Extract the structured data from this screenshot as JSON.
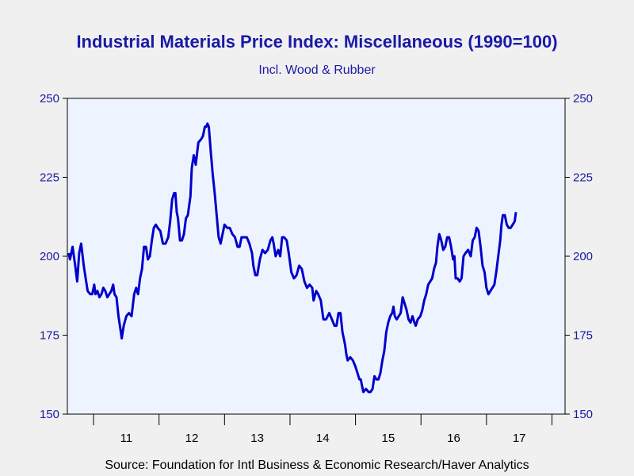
{
  "chart_data": {
    "type": "line",
    "title": "Industrial Materials Price Index: Miscellaneous (1990=100)",
    "subtitle": "Incl. Wood & Rubber",
    "source": "Source:  Foundation for Intl Business & Economic Research/Haver Analytics",
    "ylim": [
      150,
      250
    ],
    "yticks": [
      "250",
      "225",
      "200",
      "175",
      "150"
    ],
    "xlim": [
      2010.6,
      2018.2
    ],
    "xticks": [
      {
        "label": "11",
        "x": 2011.5
      },
      {
        "label": "12",
        "x": 2012.5
      },
      {
        "label": "13",
        "x": 2013.5
      },
      {
        "label": "14",
        "x": 2014.5
      },
      {
        "label": "15",
        "x": 2015.5
      },
      {
        "label": "16",
        "x": 2016.5
      },
      {
        "label": "17",
        "x": 2017.5
      }
    ],
    "grid": false,
    "line_color": "#0000cc",
    "background_color": "#eef4ff",
    "series": [
      {
        "values": [
          [
            2010.62,
            201
          ],
          [
            2010.64,
            199
          ],
          [
            2010.68,
            203
          ],
          [
            2010.72,
            197
          ],
          [
            2010.75,
            192
          ],
          [
            2010.78,
            201
          ],
          [
            2010.81,
            204
          ],
          [
            2010.85,
            197
          ],
          [
            2010.88,
            193
          ],
          [
            2010.91,
            189
          ],
          [
            2010.95,
            188
          ],
          [
            2010.98,
            188
          ],
          [
            2011.01,
            191
          ],
          [
            2011.03,
            188
          ],
          [
            2011.06,
            189
          ],
          [
            2011.09,
            187
          ],
          [
            2011.12,
            188
          ],
          [
            2011.15,
            190
          ],
          [
            2011.18,
            189
          ],
          [
            2011.21,
            187
          ],
          [
            2011.24,
            188
          ],
          [
            2011.27,
            189
          ],
          [
            2011.3,
            191
          ],
          [
            2011.32,
            188
          ],
          [
            2011.35,
            187
          ],
          [
            2011.38,
            181
          ],
          [
            2011.41,
            177
          ],
          [
            2011.43,
            174
          ],
          [
            2011.46,
            178
          ],
          [
            2011.5,
            181
          ],
          [
            2011.54,
            182
          ],
          [
            2011.58,
            181
          ],
          [
            2011.62,
            188
          ],
          [
            2011.65,
            190
          ],
          [
            2011.68,
            188
          ],
          [
            2011.71,
            193
          ],
          [
            2011.74,
            196
          ],
          [
            2011.77,
            203
          ],
          [
            2011.8,
            203
          ],
          [
            2011.83,
            199
          ],
          [
            2011.86,
            200
          ],
          [
            2011.89,
            205
          ],
          [
            2011.92,
            209
          ],
          [
            2011.95,
            210
          ],
          [
            2011.98,
            209
          ],
          [
            2012.02,
            208
          ],
          [
            2012.06,
            204
          ],
          [
            2012.1,
            204
          ],
          [
            2012.14,
            206
          ],
          [
            2012.17,
            211
          ],
          [
            2012.2,
            218
          ],
          [
            2012.23,
            220
          ],
          [
            2012.25,
            220
          ],
          [
            2012.27,
            214
          ],
          [
            2012.29,
            212
          ],
          [
            2012.32,
            205
          ],
          [
            2012.35,
            205
          ],
          [
            2012.38,
            207
          ],
          [
            2012.41,
            212
          ],
          [
            2012.44,
            213
          ],
          [
            2012.48,
            219
          ],
          [
            2012.5,
            228
          ],
          [
            2012.53,
            232
          ],
          [
            2012.56,
            229
          ],
          [
            2012.6,
            236
          ],
          [
            2012.64,
            237
          ],
          [
            2012.67,
            238
          ],
          [
            2012.7,
            241
          ],
          [
            2012.72,
            241
          ],
          [
            2012.74,
            242
          ],
          [
            2012.76,
            241
          ],
          [
            2012.79,
            233
          ],
          [
            2012.82,
            226
          ],
          [
            2012.85,
            220
          ],
          [
            2012.88,
            213
          ],
          [
            2012.91,
            206
          ],
          [
            2012.94,
            204
          ],
          [
            2012.97,
            207
          ],
          [
            2013.0,
            210
          ],
          [
            2013.04,
            209
          ],
          [
            2013.08,
            209
          ],
          [
            2013.12,
            207
          ],
          [
            2013.16,
            206
          ],
          [
            2013.2,
            203
          ],
          [
            2013.23,
            203
          ],
          [
            2013.26,
            206
          ],
          [
            2013.3,
            206
          ],
          [
            2013.34,
            206
          ],
          [
            2013.38,
            204
          ],
          [
            2013.42,
            201
          ],
          [
            2013.44,
            197
          ],
          [
            2013.47,
            194
          ],
          [
            2013.5,
            194
          ],
          [
            2013.54,
            199
          ],
          [
            2013.58,
            202
          ],
          [
            2013.62,
            201
          ],
          [
            2013.66,
            202
          ],
          [
            2013.7,
            205
          ],
          [
            2013.73,
            206
          ],
          [
            2013.75,
            204
          ],
          [
            2013.78,
            200
          ],
          [
            2013.82,
            202
          ],
          [
            2013.85,
            200
          ],
          [
            2013.88,
            206
          ],
          [
            2013.91,
            206
          ],
          [
            2013.95,
            205
          ],
          [
            2013.98,
            201
          ],
          [
            2014.02,
            195
          ],
          [
            2014.06,
            193
          ],
          [
            2014.1,
            194
          ],
          [
            2014.14,
            197
          ],
          [
            2014.18,
            196
          ],
          [
            2014.22,
            192
          ],
          [
            2014.26,
            190
          ],
          [
            2014.3,
            191
          ],
          [
            2014.34,
            190
          ],
          [
            2014.36,
            186
          ],
          [
            2014.4,
            189
          ],
          [
            2014.43,
            188
          ],
          [
            2014.47,
            186
          ],
          [
            2014.51,
            180
          ],
          [
            2014.55,
            180
          ],
          [
            2014.6,
            182
          ],
          [
            2014.64,
            180
          ],
          [
            2014.68,
            178
          ],
          [
            2014.71,
            178
          ],
          [
            2014.74,
            182
          ],
          [
            2014.77,
            182
          ],
          [
            2014.8,
            176
          ],
          [
            2014.84,
            172
          ],
          [
            2014.86,
            169
          ],
          [
            2014.88,
            167
          ],
          [
            2014.92,
            168
          ],
          [
            2014.96,
            167
          ],
          [
            2015.0,
            165
          ],
          [
            2015.03,
            163
          ],
          [
            2015.06,
            161
          ],
          [
            2015.08,
            161
          ],
          [
            2015.1,
            159
          ],
          [
            2015.12,
            157
          ],
          [
            2015.16,
            158
          ],
          [
            2015.2,
            157
          ],
          [
            2015.23,
            157
          ],
          [
            2015.26,
            158
          ],
          [
            2015.29,
            162
          ],
          [
            2015.32,
            161
          ],
          [
            2015.35,
            161
          ],
          [
            2015.38,
            163
          ],
          [
            2015.41,
            167
          ],
          [
            2015.44,
            170
          ],
          [
            2015.47,
            176
          ],
          [
            2015.5,
            179
          ],
          [
            2015.53,
            181
          ],
          [
            2015.56,
            182
          ],
          [
            2015.58,
            184
          ],
          [
            2015.6,
            181
          ],
          [
            2015.63,
            180
          ],
          [
            2015.66,
            181
          ],
          [
            2015.69,
            182
          ],
          [
            2015.72,
            187
          ],
          [
            2015.75,
            185
          ],
          [
            2015.78,
            183
          ],
          [
            2015.81,
            180
          ],
          [
            2015.84,
            179
          ],
          [
            2015.87,
            181
          ],
          [
            2015.9,
            179
          ],
          [
            2015.92,
            178
          ],
          [
            2015.95,
            180
          ],
          [
            2015.99,
            181
          ],
          [
            2016.02,
            183
          ],
          [
            2016.05,
            186
          ],
          [
            2016.08,
            188
          ],
          [
            2016.11,
            191
          ],
          [
            2016.14,
            192
          ],
          [
            2016.17,
            193
          ],
          [
            2016.2,
            196
          ],
          [
            2016.23,
            198
          ],
          [
            2016.25,
            203
          ],
          [
            2016.28,
            207
          ],
          [
            2016.31,
            205
          ],
          [
            2016.34,
            202
          ],
          [
            2016.37,
            203
          ],
          [
            2016.4,
            206
          ],
          [
            2016.43,
            206
          ],
          [
            2016.46,
            203
          ],
          [
            2016.49,
            199
          ],
          [
            2016.51,
            200
          ],
          [
            2016.53,
            193
          ],
          [
            2016.56,
            193
          ],
          [
            2016.59,
            192
          ],
          [
            2016.62,
            193
          ],
          [
            2016.65,
            200
          ],
          [
            2016.68,
            201
          ],
          [
            2016.72,
            202
          ],
          [
            2016.76,
            200
          ],
          [
            2016.79,
            205
          ],
          [
            2016.82,
            206
          ],
          [
            2016.85,
            209
          ],
          [
            2016.88,
            208
          ],
          [
            2016.91,
            203
          ],
          [
            2016.94,
            197
          ],
          [
            2016.97,
            195
          ],
          [
            2017.0,
            190
          ],
          [
            2017.03,
            188
          ],
          [
            2017.06,
            189
          ],
          [
            2017.09,
            190
          ],
          [
            2017.12,
            191
          ],
          [
            2017.15,
            195
          ],
          [
            2017.18,
            200
          ],
          [
            2017.21,
            205
          ],
          [
            2017.23,
            210
          ],
          [
            2017.25,
            213
          ],
          [
            2017.28,
            213
          ],
          [
            2017.31,
            210
          ],
          [
            2017.34,
            209
          ],
          [
            2017.37,
            209
          ],
          [
            2017.4,
            210
          ],
          [
            2017.43,
            211
          ],
          [
            2017.45,
            214
          ]
        ]
      }
    ]
  }
}
